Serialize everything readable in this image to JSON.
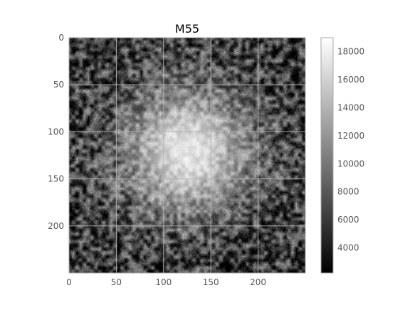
{
  "chart_data": {
    "type": "heatmap",
    "title": "M55",
    "xlabel": "",
    "ylabel": "",
    "colormap": "gray",
    "grid": true,
    "image_shape": [
      250,
      250
    ],
    "x_ticks": [
      0,
      50,
      100,
      150,
      200
    ],
    "y_ticks": [
      0,
      50,
      100,
      150,
      200
    ],
    "xlim": [
      0,
      250
    ],
    "ylim": [
      250,
      0
    ],
    "colorbar": {
      "range": [
        2200,
        19000
      ],
      "ticks": [
        4000,
        6000,
        8000,
        10000,
        12000,
        14000,
        16000,
        18000
      ]
    },
    "description_values": {
      "core_value": 17500,
      "background_value": 6000,
      "core_center": [
        125,
        120
      ]
    }
  }
}
